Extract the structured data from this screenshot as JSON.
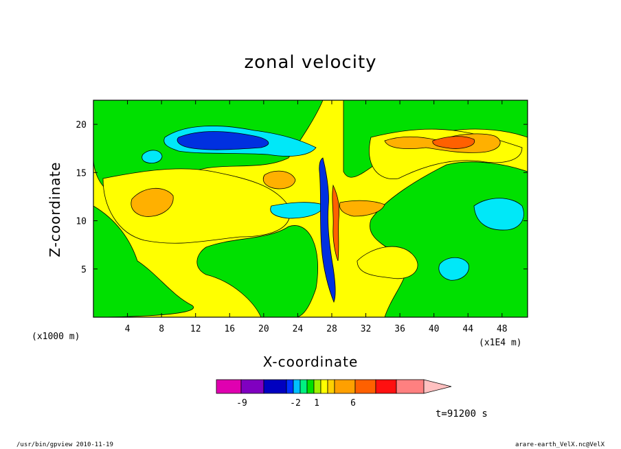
{
  "chart_data": {
    "type": "heatmap",
    "title": "zonal velocity",
    "xlabel": "X-coordinate",
    "ylabel": "Z-coordinate",
    "x_unit_label": "(x1E4 m)",
    "y_unit_label": "(x1000 m)",
    "xlim": [
      0,
      51
    ],
    "ylim": [
      0,
      22.5
    ],
    "x_ticks": [
      4,
      8,
      12,
      16,
      20,
      24,
      28,
      32,
      36,
      40,
      44,
      48
    ],
    "y_ticks": [
      5,
      10,
      15,
      20
    ],
    "colorbar": {
      "levels": [
        "-9",
        "-2",
        "1",
        "6"
      ],
      "colors": [
        "#e000b0",
        "#8000c0",
        "#0000c0",
        "#0030ff",
        "#00c0ff",
        "#00f080",
        "#00e000",
        "#a0f000",
        "#ffff00",
        "#ffd000",
        "#ffa000",
        "#ff6000",
        "#ff1010",
        "#ff8080",
        "#ffc0c0"
      ]
    },
    "regions": [
      {
        "name": "yellow",
        "color": "#ffff00"
      },
      {
        "name": "green",
        "color": "#00e000"
      },
      {
        "name": "lime",
        "color": "#a0f000"
      },
      {
        "name": "cyan",
        "color": "#00e8f8"
      },
      {
        "name": "blue",
        "color": "#0030e0"
      },
      {
        "name": "orange",
        "color": "#ffb000"
      },
      {
        "name": "dark-orange",
        "color": "#ff6000"
      }
    ]
  },
  "annotations": {
    "time": "t=91200 s",
    "footer_left": "/usr/bin/gpview  2010-11-19",
    "footer_right": "arare-earth_VelX.nc@VelX"
  }
}
